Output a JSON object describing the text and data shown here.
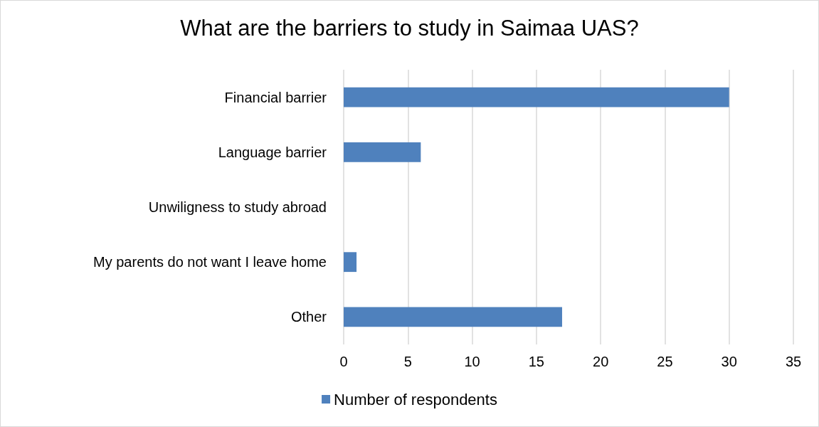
{
  "chart_data": {
    "type": "bar",
    "orientation": "horizontal",
    "title": "What are the barriers to study in Saimaa UAS?",
    "categories": [
      "Financial barrier",
      "Language barrier",
      "Unwiligness to study abroad",
      "My parents do not want I leave home",
      "Other"
    ],
    "series": [
      {
        "name": "Number of respondents",
        "color": "#4f81bd",
        "values": [
          30,
          6,
          0,
          1,
          17
        ]
      }
    ],
    "xlim": [
      0,
      35
    ],
    "xticks": [
      0,
      5,
      10,
      15,
      20,
      25,
      30,
      35
    ],
    "grid": "x",
    "legend": "bottom"
  }
}
